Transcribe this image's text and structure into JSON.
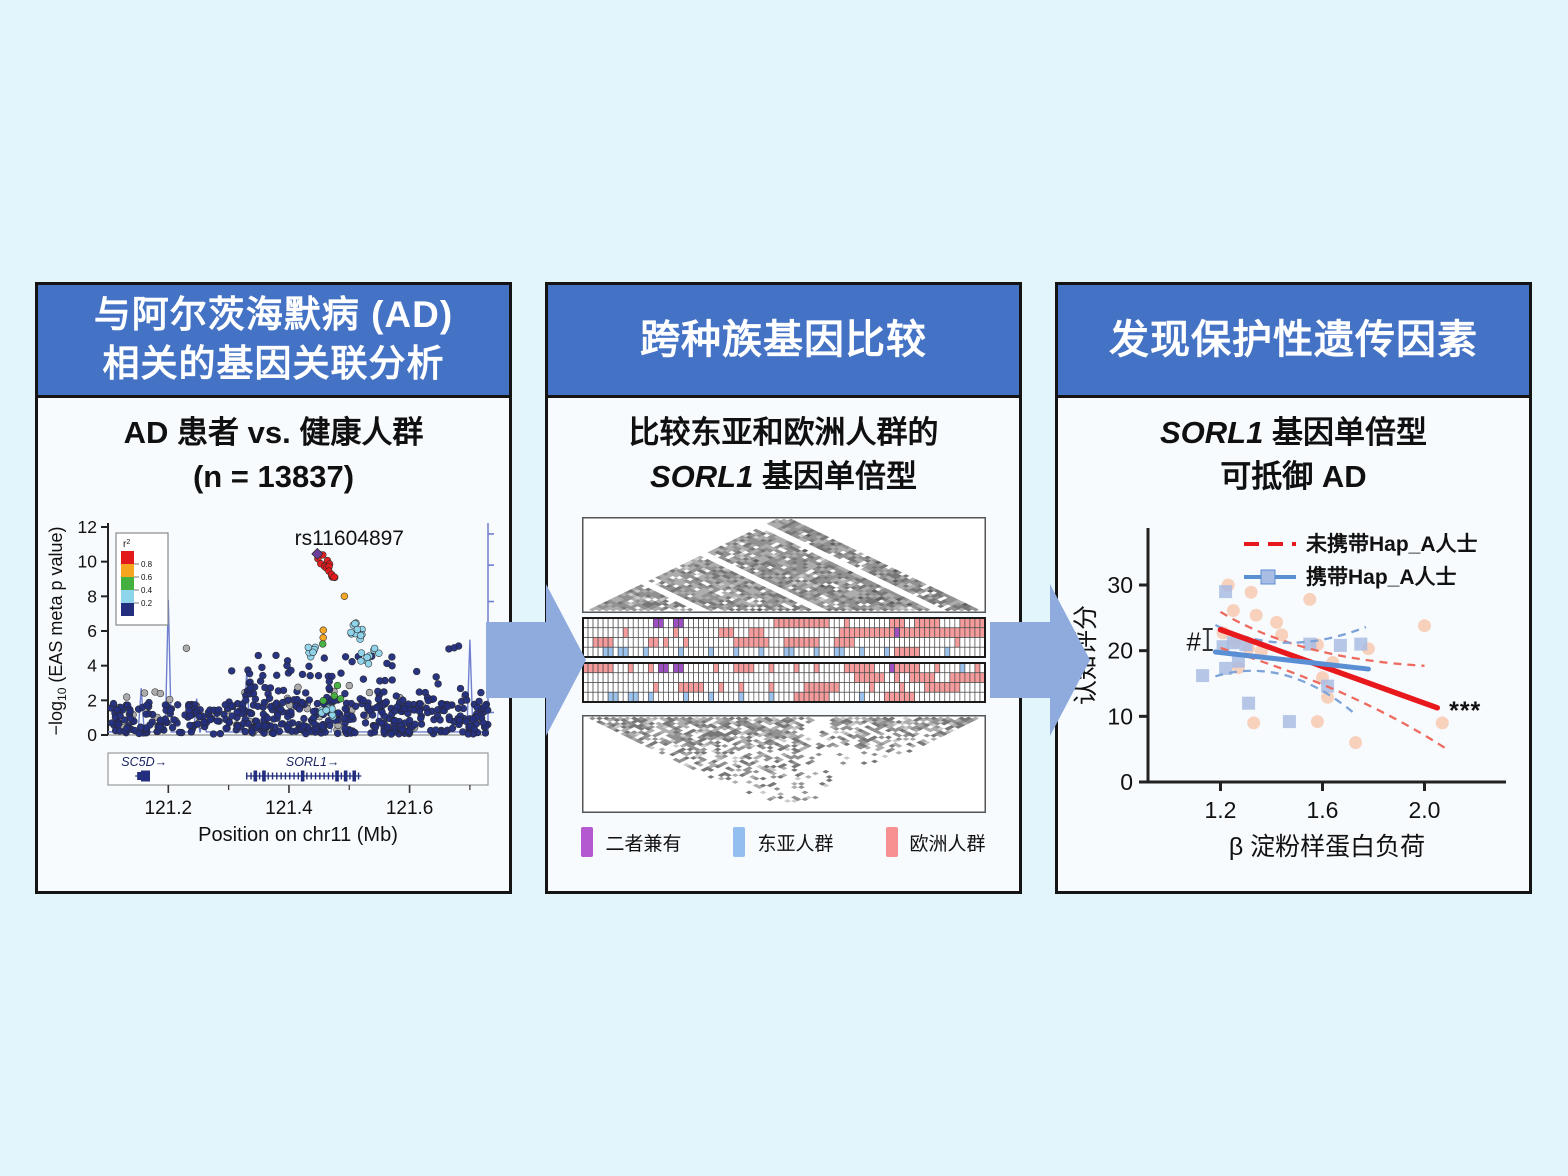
{
  "page": {
    "background": "#e2f5fd",
    "header_color": "#4472c4",
    "arrow_color": "#8faadc"
  },
  "panels": {
    "gwas": {
      "header_line1": "与阿尔茨海默病 (AD)",
      "header_line2": "相关的基因关联分析",
      "subtitle_line1": "AD 患者 vs. 健康人群",
      "subtitle_line2": "(n = 13837)"
    },
    "compare": {
      "header": "跨种族基因比较",
      "subtitle_line1": "比较东亚和欧洲人群的",
      "subtitle_line2_italic": "SORL1",
      "subtitle_line2_rest": " 基因单倍型"
    },
    "protect": {
      "header": "发现保护性遗传因素",
      "subtitle_line1_italic": "SORL1",
      "subtitle_line1_rest": " 基因单倍型",
      "subtitle_line2": "可抵御 AD"
    }
  },
  "chart_data": [
    {
      "name": "locuszoom-eas-gwas",
      "type": "scatter",
      "title_annotation": "rs11604897",
      "ylabel": "-log10 (EAS meta p value)",
      "xlabel": "Position on chr11 (Mb)",
      "xlim": [
        121.1,
        121.73
      ],
      "ylim": [
        0,
        12
      ],
      "yticks": [
        0,
        2,
        4,
        6,
        8,
        10,
        12
      ],
      "xticks": [
        121.2,
        121.4,
        121.6
      ],
      "xticks_minor": [
        121.3,
        121.5,
        121.7
      ],
      "legend_r2": {
        "title": "r2",
        "colors": [
          "#e31a1c",
          "#f6a51f",
          "#43b03f",
          "#8ed4ea",
          "#232e7e"
        ],
        "labels": [
          "0.8",
          "0.6",
          "0.4",
          "0.2"
        ]
      },
      "lead_snp": {
        "label": "rs11604897",
        "x": 121.447,
        "y": 10.45,
        "color": "#6a3d9a"
      },
      "clusters": [
        {
          "color": "#a9a9a9",
          "n": 45,
          "x0": 121.1,
          "x1": 121.73,
          "y0": 0.1,
          "y1": 2.6,
          "mode": "box"
        },
        {
          "color": "#232e7e",
          "n": 430,
          "x0": 121.1,
          "x1": 121.73,
          "y0": 0.05,
          "y1": 1.9,
          "mode": "box"
        },
        {
          "color": "#232e7e",
          "n": 70,
          "x0": 121.32,
          "x1": 121.58,
          "y0": 2.0,
          "y1": 4.7,
          "mode": "decay"
        },
        {
          "color": "#232e7e",
          "n": 18,
          "x0": 121.58,
          "x1": 121.72,
          "y0": 1.8,
          "y1": 4.2,
          "mode": "decay"
        },
        {
          "color": "#232e7e",
          "n": 3,
          "x0": 121.66,
          "x1": 121.7,
          "y0": 3.8,
          "y1": 5.5,
          "mode": "box"
        },
        {
          "color": "#43b03f",
          "n": 4,
          "x0": 121.45,
          "x1": 121.49,
          "y0": 1.9,
          "y1": 3.2,
          "mode": "box"
        },
        {
          "color": "#8ed4ea",
          "n": 10,
          "x0": 121.44,
          "x1": 121.48,
          "y0": 0.8,
          "y1": 1.8,
          "mode": "box"
        },
        {
          "color": "#8ed4ea",
          "n": 7,
          "x0": 121.432,
          "x1": 121.448,
          "y0": 4.4,
          "y1": 5.1,
          "mode": "box"
        },
        {
          "color": "#8ed4ea",
          "n": 9,
          "x0": 121.515,
          "x1": 121.55,
          "y0": 4.0,
          "y1": 5.0,
          "mode": "box"
        },
        {
          "color": "#8ed4ea",
          "n": 13,
          "x0": 121.502,
          "x1": 121.528,
          "y0": 5.4,
          "y1": 6.5,
          "mode": "box"
        },
        {
          "color": "#f6a51f",
          "n": 2,
          "x0": 121.456,
          "x1": 121.457,
          "y0": 6.0,
          "y1": 5.65,
          "mode": "line",
          "jx": 0.001,
          "jy": 0.05
        },
        {
          "color": "#43b03f",
          "n": 1,
          "x0": 121.456,
          "x1": 121.456,
          "y0": 5.25,
          "y1": 5.25,
          "mode": "line",
          "jx": 0,
          "jy": 0
        },
        {
          "color": "#f6a51f",
          "n": 1,
          "x0": 121.492,
          "x1": 121.492,
          "y0": 8.0,
          "y1": 8.0,
          "mode": "line",
          "jx": 0,
          "jy": 0
        },
        {
          "color": "#e31a1c",
          "n": 16,
          "x0": 121.451,
          "x1": 121.478,
          "y0": 10.35,
          "y1": 8.95,
          "mode": "line",
          "jx": 0.004,
          "jy": 0.25
        }
      ],
      "singles": [
        {
          "x": 121.23,
          "y": 5.0,
          "color": "#a9a9a9"
        },
        {
          "x": 121.305,
          "y": 3.7,
          "color": "#232e7e"
        },
        {
          "x": 121.5,
          "y": 2.85,
          "color": "#a9a9a9"
        },
        {
          "x": 121.415,
          "y": 2.75,
          "color": "#a9a9a9"
        }
      ],
      "recomb": {
        "color": "#7080cf",
        "base": 0.18,
        "spikes": [
          [
            121.155,
            2.7
          ],
          [
            121.2,
            7.8
          ],
          [
            121.247,
            2.1
          ],
          [
            121.258,
            1.3
          ],
          [
            121.33,
            3.7
          ],
          [
            121.4,
            1.6
          ],
          [
            121.475,
            1.3
          ],
          [
            121.55,
            2.1
          ],
          [
            121.7,
            5.5
          ]
        ]
      },
      "genes": [
        {
          "name": "SC5D",
          "label_x": 121.122,
          "exon_x0": 121.145,
          "exon_x1": 121.168
        },
        {
          "name": "SORL1",
          "label_x": 121.395,
          "exon_x0": 121.33,
          "exon_x1": 121.52
        }
      ]
    },
    {
      "name": "haplotype-comparison",
      "type": "heatmap",
      "triangles": [
        {
          "orientation": "up",
          "cols": 58,
          "density": 0.9,
          "seed": 7,
          "height": 96
        },
        {
          "orientation": "down",
          "cols": 58,
          "density": 0.5,
          "seed": 13,
          "height": 98
        }
      ],
      "cell_colors": {
        ".": "#ffffff",
        "r": "#f59b9b",
        "b": "#9cc3ee",
        "p": "#9b4fc0"
      },
      "grids": [
        {
          "rows": [
            "..............pp..pp..................rrrrrrrrrrr...r........rrr..rrrrr....rrrrr",
            "........r.........r........rrr...rrr...............rrrrrrrrrrrprrrrrrrrrrrrrrrrr",
            "..rrrr.......rr.r...r.........rrrrrrr...rrrrrrr...rrrr....................r.....",
            "....bb.bb...b......b.....b....b....b....bb....b...bb...b....b.rrrrr.....b......."
          ]
        },
        {
          "rows": [
            "rrrrrr...r...r.pp.pp......r...rrrr...r....r...r.....rrrrrr...prrrrr...r....b..r.",
            "......................................................rrrrrr..r..rrrrr...rrrrrrr",
            "..............r....rrrrr...r...r.....r......rrrrrrr......r.....r....rrrrrrr.....",
            ".....bb..bb..b......b....b.....b.....b....rrrrrrr......b....rrrrrr.............."
          ]
        }
      ],
      "legend": [
        {
          "label": "二者兼有",
          "color": "#b459cf"
        },
        {
          "label": "东亚人群",
          "color": "#94bdf0"
        },
        {
          "label": "欧洲人群",
          "color": "#f88f90"
        }
      ]
    },
    {
      "name": "hapA-protection",
      "type": "scatter",
      "ylabel": "认知评分",
      "xlabel": "β 淀粉样蛋白负荷",
      "xlim": [
        1.05,
        2.25
      ],
      "ylim": [
        0,
        38.7
      ],
      "xticks": [
        1.2,
        1.6,
        2.0
      ],
      "yticks": [
        0,
        10,
        20,
        30
      ],
      "legend": [
        {
          "label": "未携带Hap_A人士",
          "color": "#e8191c",
          "style": "dashed"
        },
        {
          "label": "携带Hap_A人士",
          "color": "#5b8fd4",
          "style": "square"
        }
      ],
      "series": [
        {
          "name": "未携带Hap_A人士",
          "marker": "circle",
          "point_color": "#f8c7ad",
          "points": [
            [
              1.23,
              30
            ],
            [
              1.32,
              28.9
            ],
            [
              1.55,
              27.8
            ],
            [
              1.25,
              26.1
            ],
            [
              1.34,
              25.4
            ],
            [
              1.42,
              24.3
            ],
            [
              2.0,
              23.8
            ],
            [
              1.21,
              22.7
            ],
            [
              1.26,
              21.4
            ],
            [
              1.31,
              20.4
            ],
            [
              1.36,
              19.9
            ],
            [
              1.44,
              22.4
            ],
            [
              1.58,
              20.9
            ],
            [
              1.78,
              20.3
            ],
            [
              1.27,
              17.4
            ],
            [
              1.6,
              15.9
            ],
            [
              1.64,
              18.2
            ],
            [
              1.62,
              12.9
            ],
            [
              1.33,
              9.0
            ],
            [
              1.58,
              9.2
            ],
            [
              1.73,
              6.0
            ],
            [
              2.07,
              9.0
            ]
          ],
          "fit": {
            "x": [
              1.2,
              2.05
            ],
            "y": [
              23.2,
              11.3
            ],
            "color": "#e8191c"
          },
          "ci_color": "#ee6a5f",
          "ci_upper": [
            [
              1.2,
              25.9
            ],
            [
              1.55,
              20.3
            ],
            [
              2.0,
              17.7
            ]
          ],
          "ci_lower": [
            [
              1.2,
              20.4
            ],
            [
              1.68,
              13.5
            ],
            [
              2.08,
              5.2
            ]
          ]
        },
        {
          "name": "携带Hap_A人士",
          "marker": "square",
          "point_color": "#a9bce3",
          "points": [
            [
              1.22,
              29
            ],
            [
              1.13,
              16.2
            ],
            [
              1.21,
              20.6
            ],
            [
              1.25,
              21.2
            ],
            [
              1.3,
              20.9
            ],
            [
              1.27,
              18.4
            ],
            [
              1.22,
              17.3
            ],
            [
              1.55,
              21
            ],
            [
              1.67,
              20.8
            ],
            [
              1.75,
              21
            ],
            [
              1.62,
              14.6
            ],
            [
              1.31,
              12
            ],
            [
              1.47,
              9.2
            ]
          ],
          "fit": {
            "x": [
              1.18,
              1.78
            ],
            "y": [
              19.8,
              17.2
            ],
            "color": "#5b8fd4"
          },
          "ci_color": "#7da3d8",
          "ci_upper": [
            [
              1.18,
              23.9
            ],
            [
              1.46,
              21.2
            ],
            [
              1.77,
              23.6
            ]
          ],
          "ci_lower": [
            [
              1.18,
              16.1
            ],
            [
              1.45,
              16.3
            ],
            [
              1.72,
              10.6
            ]
          ]
        }
      ],
      "annotations": {
        "hash": {
          "text": "#",
          "x": 1.095,
          "y": 21.4,
          "bracket": {
            "x": 1.15,
            "y_top": 23.3,
            "y_bottom": 20.1
          }
        },
        "stars": {
          "text": "***",
          "x": 2.12,
          "y": 11.0
        }
      }
    }
  ]
}
